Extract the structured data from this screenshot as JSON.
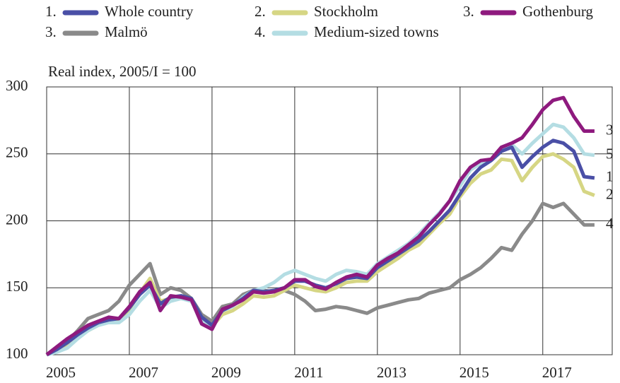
{
  "chart_data": {
    "type": "line",
    "y_axis_label": "Real index, 2005/I = 100",
    "x": [
      2005,
      2005.25,
      2005.5,
      2005.75,
      2006,
      2006.25,
      2006.5,
      2006.75,
      2007,
      2007.25,
      2007.5,
      2007.75,
      2008,
      2008.25,
      2008.5,
      2008.75,
      2009,
      2009.25,
      2009.5,
      2009.75,
      2010,
      2010.25,
      2010.5,
      2010.75,
      2011,
      2011.25,
      2011.5,
      2011.75,
      2012,
      2012.25,
      2012.5,
      2012.75,
      2013,
      2013.25,
      2013.5,
      2013.75,
      2014,
      2014.25,
      2014.5,
      2014.75,
      2015,
      2015.25,
      2015.5,
      2015.75,
      2016,
      2016.25,
      2016.5,
      2016.75,
      2017,
      2017.25,
      2017.5,
      2017.75,
      2018,
      2018.25
    ],
    "series": [
      {
        "name": "Whole country",
        "legend_prefix": "1.",
        "end_label": "1",
        "color": "#4a4fa6",
        "values": [
          100,
          104,
          109,
          115,
          120,
          124,
          126,
          127,
          135,
          145,
          152,
          138,
          143,
          144,
          142,
          128,
          122,
          133,
          137,
          142,
          148,
          147,
          148,
          150,
          155,
          155,
          152,
          150,
          153,
          157,
          158,
          157,
          165,
          170,
          175,
          180,
          185,
          192,
          200,
          208,
          220,
          232,
          240,
          245,
          252,
          255,
          240,
          248,
          255,
          260,
          258,
          252,
          233,
          232
        ]
      },
      {
        "name": "Stockholm",
        "legend_prefix": "2.",
        "end_label": "2",
        "color": "#d6d684",
        "values": [
          100,
          103,
          108,
          113,
          118,
          122,
          125,
          126,
          134,
          146,
          157,
          140,
          142,
          143,
          140,
          126,
          121,
          130,
          133,
          138,
          144,
          143,
          144,
          148,
          152,
          150,
          148,
          147,
          150,
          154,
          155,
          155,
          162,
          167,
          172,
          178,
          182,
          190,
          198,
          205,
          218,
          228,
          235,
          238,
          246,
          245,
          230,
          240,
          248,
          250,
          246,
          240,
          222,
          219
        ]
      },
      {
        "name": "Gothenburg",
        "legend_prefix": "3.",
        "end_label": "3",
        "color": "#8e1a7e",
        "values": [
          100,
          106,
          112,
          117,
          122,
          125,
          128,
          127,
          136,
          147,
          154,
          133,
          144,
          143,
          141,
          123,
          119,
          134,
          137,
          141,
          147,
          146,
          147,
          150,
          156,
          156,
          151,
          149,
          154,
          158,
          160,
          158,
          167,
          172,
          176,
          182,
          188,
          197,
          205,
          215,
          230,
          240,
          245,
          246,
          255,
          258,
          262,
          272,
          283,
          290,
          292,
          278,
          267,
          267
        ]
      },
      {
        "name": "Malmö",
        "legend_prefix": "3.",
        "end_label": "4",
        "color": "#8a8a8a",
        "values": [
          100,
          105,
          110,
          118,
          127,
          130,
          133,
          140,
          152,
          160,
          168,
          145,
          150,
          148,
          142,
          130,
          125,
          136,
          138,
          145,
          148,
          148,
          147,
          148,
          145,
          140,
          133,
          134,
          136,
          135,
          133,
          131,
          135,
          137,
          139,
          141,
          142,
          146,
          148,
          150,
          156,
          160,
          165,
          172,
          180,
          178,
          190,
          200,
          213,
          210,
          213,
          205,
          197,
          197
        ]
      },
      {
        "name": "Medium-sized towns",
        "legend_prefix": "4.",
        "end_label": "5",
        "color": "#b4dde3",
        "values": [
          100,
          102,
          105,
          112,
          118,
          122,
          124,
          124,
          130,
          140,
          148,
          135,
          140,
          142,
          140,
          125,
          120,
          133,
          136,
          143,
          148,
          150,
          154,
          160,
          163,
          160,
          157,
          155,
          160,
          163,
          162,
          160,
          168,
          173,
          178,
          183,
          190,
          198,
          206,
          215,
          226,
          238,
          243,
          246,
          254,
          257,
          250,
          258,
          265,
          272,
          270,
          262,
          250,
          249
        ]
      }
    ],
    "xlim": [
      2005,
      2018.68
    ],
    "xticks": [
      2005,
      2007,
      2009,
      2011,
      2013,
      2015,
      2017
    ],
    "ylim": [
      100,
      300
    ],
    "yticks": [
      100,
      150,
      200,
      250,
      300
    ],
    "grid": true
  }
}
